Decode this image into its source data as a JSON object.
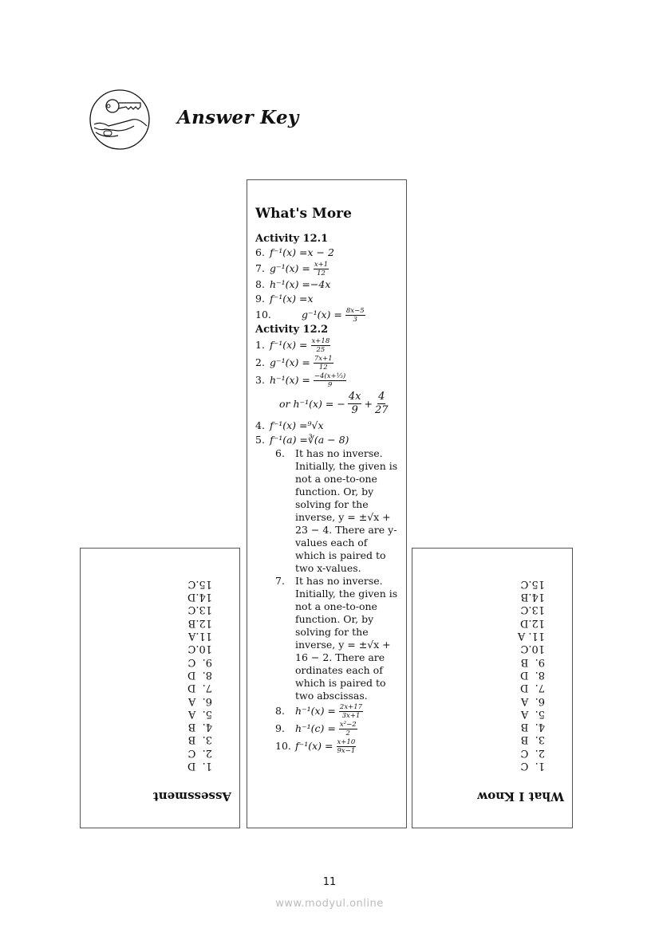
{
  "header": {
    "title": "Answer Key",
    "logo_icon": "key-in-hand-icon"
  },
  "whats_more": {
    "title": "What's More",
    "activity_12_1": {
      "title": "Activity 12.1",
      "items": [
        {
          "n": "6.",
          "lhs": "f⁻¹(x) = ",
          "rhs": "x − 2"
        },
        {
          "n": "7.",
          "lhs": "g⁻¹(x) = ",
          "num": "x+1",
          "den": "12"
        },
        {
          "n": "8.",
          "lhs": "h⁻¹(x) = ",
          "rhs": "−4x"
        },
        {
          "n": "9.",
          "lhs": "f⁻¹(x) = ",
          "rhs": "x"
        },
        {
          "n": "10.",
          "lhs": "g⁻¹(x) = ",
          "num": "8x−5",
          "den": "3"
        }
      ]
    },
    "activity_12_2": {
      "title": "Activity 12.2",
      "items": [
        {
          "n": "1.",
          "lhs": "f⁻¹(x) = ",
          "num": "x+18",
          "den": "25"
        },
        {
          "n": "2.",
          "lhs": "g⁻¹(x) = ",
          "num": "7x+1",
          "den": "12"
        },
        {
          "n": "3.",
          "lhs": "h⁻¹(x) = ",
          "num": "−4(x+⅓)",
          "den": "9"
        },
        {
          "alt_lhs": "or h⁻¹(x) = −",
          "f1_num": "4x",
          "f1_den": "9",
          "plus": "+",
          "f2_num": "4",
          "f2_den": "27"
        },
        {
          "n": "4.",
          "lhs": "f⁻¹(x) = ",
          "rhs": "⁹√x"
        },
        {
          "n": "5.",
          "lhs": "f⁻¹(a) = ",
          "rhs": "∛(a − 8)"
        },
        {
          "n": "6.",
          "text": "It has no inverse. Initially, the given is not a one-to-one function. Or, by solving for the inverse, y = ±√x + 23 − 4. There are y-values each of which is paired to two x-values."
        },
        {
          "n": "7.",
          "text": "It has no inverse. Initially, the given is not a one-to-one function. Or, by solving for the inverse, y = ±√x + 16 − 2. There are ordinates each of which is paired to two abscissas."
        },
        {
          "n": "8.",
          "lhs": "h⁻¹(x) = ",
          "num": "2x+17",
          "den": "3x+1"
        },
        {
          "n": "9.",
          "lhs": "h⁻¹(c) = ",
          "num": "x²−2",
          "den": "2"
        },
        {
          "n": "10.",
          "lhs": "f⁻¹(x) = ",
          "num": "x+10",
          "den": "9x−1"
        }
      ]
    }
  },
  "assessment": {
    "title": "Assessment",
    "answers": [
      "1.  D",
      "2.  C",
      "3.  B",
      "4.  B",
      "5.  A",
      "6.  A",
      "7.  D",
      "8.  D",
      "9.  C",
      "10.C",
      "11.A",
      "12.B",
      "13.C",
      "14.D",
      "15.C"
    ]
  },
  "what_i_know": {
    "title": "What I Know",
    "answers": [
      "1.  C",
      "2.  C",
      "3.  B",
      "4.  B",
      "5.  A",
      "6.  A",
      "7.  D",
      "8.  D",
      "9.  B",
      "10.C",
      "11. A",
      "12.D",
      "13.C",
      "14.B",
      "15.C"
    ]
  },
  "footer": {
    "page_number": "11",
    "watermark": "www.modyul.online"
  }
}
